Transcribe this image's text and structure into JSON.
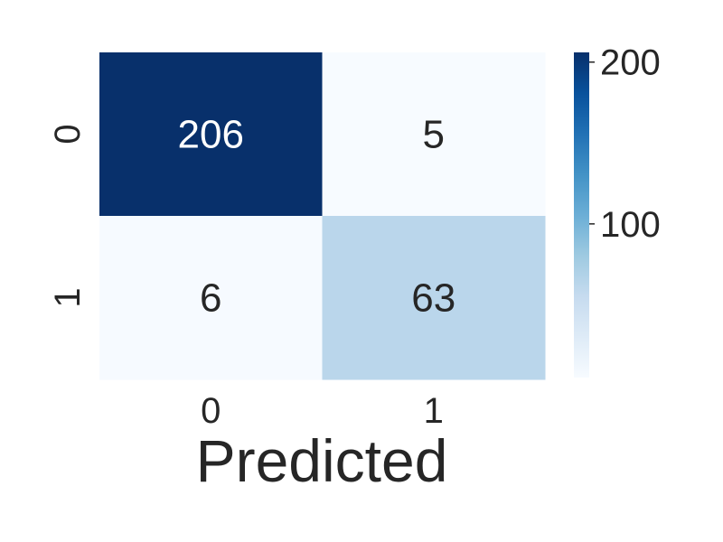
{
  "chart_data": {
    "type": "heatmap",
    "title": "",
    "xlabel": "Predicted",
    "ylabel": "",
    "x_categories": [
      "0",
      "1"
    ],
    "y_categories": [
      "0",
      "1"
    ],
    "values": [
      [
        206,
        5
      ],
      [
        6,
        63
      ]
    ],
    "colormap": "Blues",
    "colorbar": {
      "min": 5,
      "max": 206,
      "ticks": [
        100,
        200
      ],
      "tick_labels": [
        "100",
        "200"
      ]
    },
    "colors": {
      "dark_blue": "#08306b",
      "light_blue": "#f7fbff",
      "annotation_on_dark": "#ffffff",
      "annotation_on_light": "#262626"
    }
  }
}
